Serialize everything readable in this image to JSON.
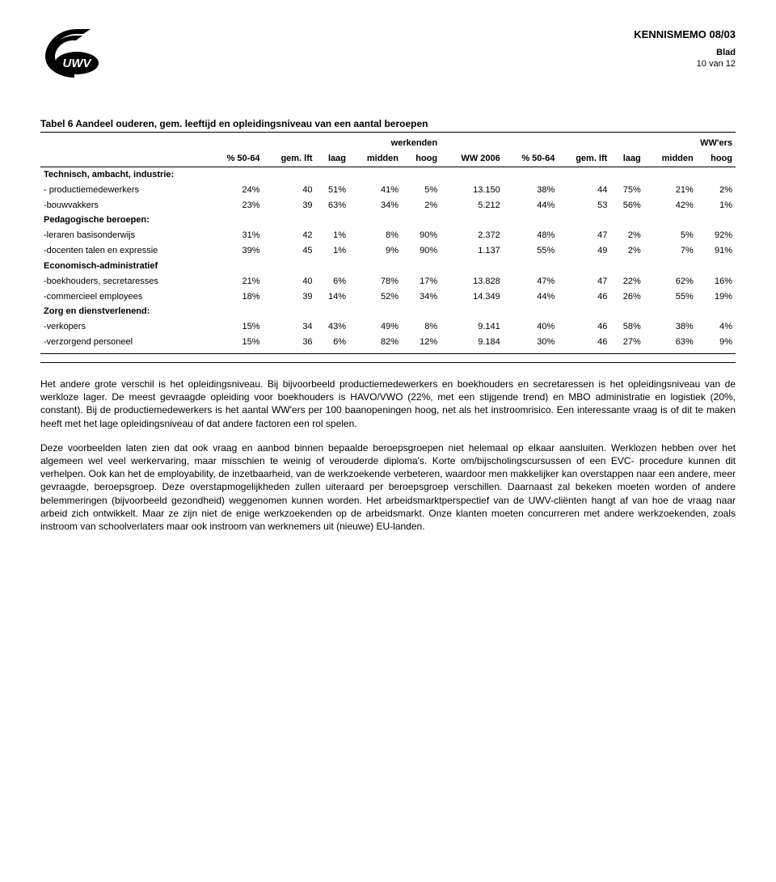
{
  "header": {
    "memo_title": "KENNISMEMO 08/03",
    "blad_label": "Blad",
    "page_indicator": "10 van 12"
  },
  "table": {
    "title": "Tabel 6 Aandeel ouderen, gem. leeftijd en opleidingsniveau van een aantal beroepen",
    "super_headers": {
      "left": "werkenden",
      "right": "WW'ers"
    },
    "col_headers": {
      "c1": "% 50-64",
      "c2": "gem. lft",
      "c3": "laag",
      "c4": "midden",
      "c5": "hoog",
      "c6": "WW 2006",
      "c7": "% 50-64",
      "c8": "gem. lft",
      "c9": "laag",
      "c10": "midden",
      "c11": "hoog"
    },
    "sections": [
      {
        "label": "Technisch, ambacht, industrie:",
        "rows": [
          {
            "label": "- productiemedewerkers",
            "v": [
              "24%",
              "40",
              "51%",
              "41%",
              "5%",
              "13.150",
              "38%",
              "44",
              "75%",
              "21%",
              "2%"
            ]
          },
          {
            "label": "-bouwvakkers",
            "v": [
              "23%",
              "39",
              "63%",
              "34%",
              "2%",
              "5.212",
              "44%",
              "53",
              "56%",
              "42%",
              "1%"
            ]
          }
        ]
      },
      {
        "label": "Pedagogische beroepen:",
        "rows": [
          {
            "label": "-leraren basisonderwijs",
            "v": [
              "31%",
              "42",
              "1%",
              "8%",
              "90%",
              "2.372",
              "48%",
              "47",
              "2%",
              "5%",
              "92%"
            ]
          },
          {
            "label": "-docenten talen en expressie",
            "v": [
              "39%",
              "45",
              "1%",
              "9%",
              "90%",
              "1.137",
              "55%",
              "49",
              "2%",
              "7%",
              "91%"
            ]
          }
        ]
      },
      {
        "label": "Economisch-administratief",
        "rows": [
          {
            "label": "-boekhouders, secretaresses",
            "v": [
              "21%",
              "40",
              "6%",
              "78%",
              "17%",
              "13.828",
              "47%",
              "47",
              "22%",
              "62%",
              "16%"
            ]
          },
          {
            "label": "-commercieel employees",
            "v": [
              "18%",
              "39",
              "14%",
              "52%",
              "34%",
              "14.349",
              "44%",
              "46",
              "26%",
              "55%",
              "19%"
            ]
          }
        ]
      },
      {
        "label": "Zorg en dienstverlenend:",
        "rows": [
          {
            "label": "-verkopers",
            "v": [
              "15%",
              "34",
              "43%",
              "49%",
              "8%",
              "9.141",
              "40%",
              "46",
              "58%",
              "38%",
              "4%"
            ]
          },
          {
            "label": "-verzorgend personeel",
            "v": [
              "15%",
              "36",
              "6%",
              "82%",
              "12%",
              "9.184",
              "30%",
              "46",
              "27%",
              "63%",
              "9%"
            ]
          }
        ]
      }
    ]
  },
  "paragraphs": {
    "p1": "Het andere grote verschil is het opleidingsniveau. Bij bijvoorbeeld productiemedewerkers en boekhouders en secretaressen is het opleidingsniveau van de werkloze lager. De meest gevraagde opleiding voor boekhouders is HAVO/VWO (22%, met een stijgende trend) en MBO administratie en logistiek (20%, constant). Bij de productiemedewerkers is het aantal WW'ers per 100 baanopeningen hoog, net als het instroomrisico. Een interessante vraag is of dit te maken heeft met het lage opleidingsniveau of dat andere factoren een rol spelen.",
    "p2": "Deze voorbeelden laten zien dat ook vraag en aanbod binnen bepaalde beroepsgroepen niet helemaal op elkaar aansluiten. Werklozen hebben over het algemeen wel veel werkervaring, maar misschien te weinig of verouderde diploma's. Korte om/bijscholingscursussen of een EVC- procedure kunnen dit verhelpen. Ook kan het de employability, de inzetbaarheid, van de werkzoekende verbeteren, waardoor men makkelijker kan overstappen naar een andere, meer gevraagde, beroepsgroep. Deze overstapmogelijkheden zullen uiteraard per beroepsgroep verschillen. Daarnaast zal bekeken moeten worden of andere belemmeringen (bijvoorbeeld gezondheid) weggenomen kunnen worden. Het arbeidsmarktperspectief van de UWV-cliënten hangt af van hoe de vraag naar arbeid zich ontwikkelt. Maar ze zijn niet de enige werkzoekenden op de arbeidsmarkt. Onze klanten moeten concurreren met andere werkzoekenden, zoals instroom van schoolverlaters maar ook instroom van werknemers uit (nieuwe) EU-landen."
  },
  "style": {
    "text_color": "#000000",
    "background_color": "#ffffff",
    "rule_color": "#000000",
    "body_fontsize": 12,
    "table_fontsize": 11,
    "title_fontsize": 12,
    "header_title_fontsize": 13
  }
}
